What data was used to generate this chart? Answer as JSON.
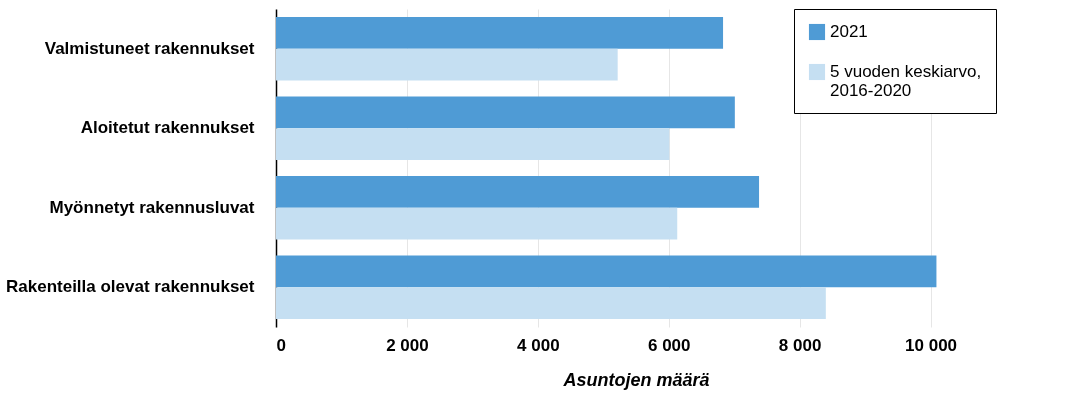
{
  "chart_data": {
    "type": "bar",
    "orientation": "horizontal",
    "xlabel": "Asuntojen määrä",
    "categories": [
      "Valmistuneet rakennukset",
      "Aloitetut rakennukset",
      "Myönnetyt rakennusluvat",
      "Rakenteilla olevat rakennukset"
    ],
    "series": [
      {
        "name": "2021",
        "color": "#4f9bd5",
        "values": [
          6830,
          7010,
          7380,
          10090
        ]
      },
      {
        "name": "5 vuoden keskiarvo, 2016-2020",
        "color": "#c5dff2",
        "values": [
          5220,
          6010,
          6130,
          8400
        ]
      }
    ],
    "xlim": [
      0,
      11000
    ],
    "xticks": [
      0,
      {
        "value": 2000,
        "label": "2 000"
      },
      {
        "value": 4000,
        "label": "4 000"
      },
      {
        "value": 6000,
        "label": "6 000"
      },
      {
        "value": 8000,
        "label": "8 000"
      },
      {
        "value": 10000,
        "label": "10 000"
      }
    ],
    "grid": "x",
    "legend": "top right"
  }
}
